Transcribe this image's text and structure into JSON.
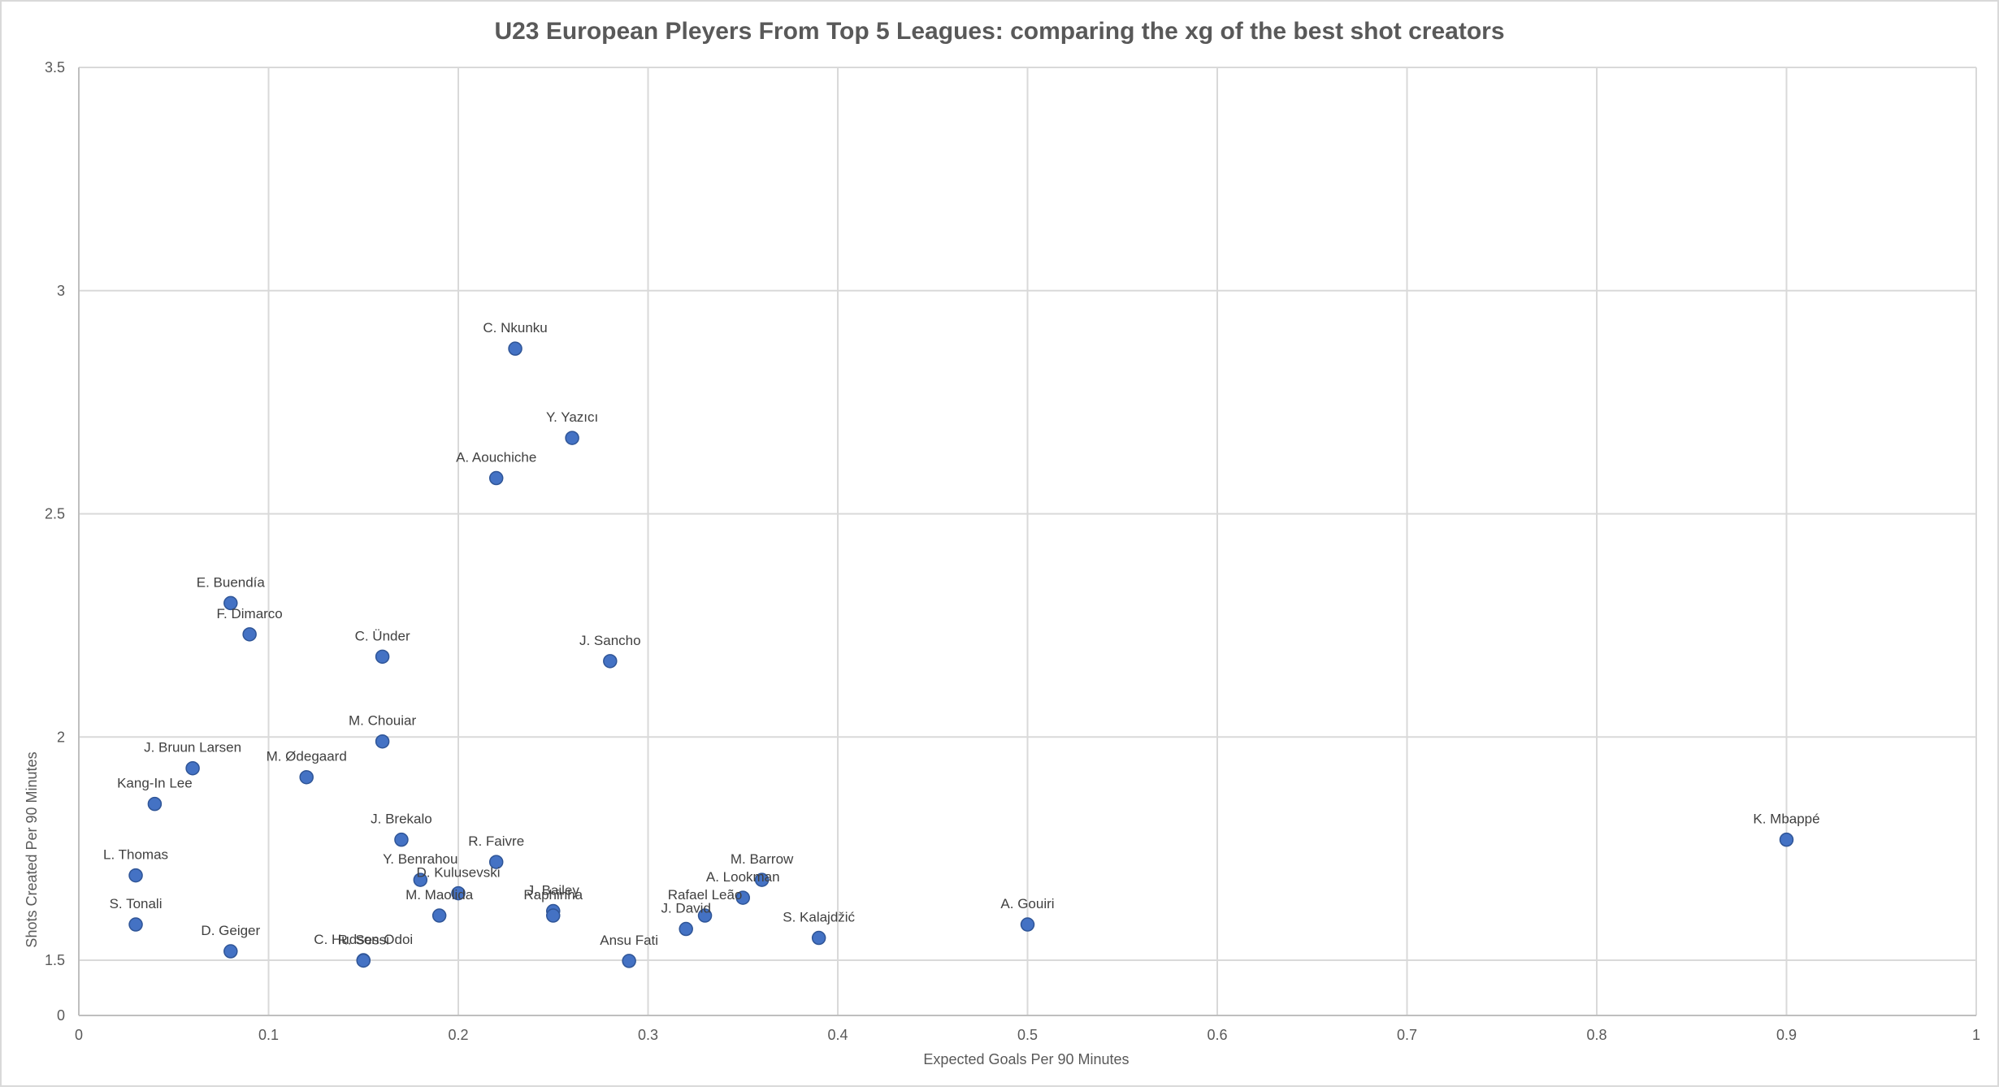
{
  "chart_data": {
    "type": "scatter",
    "title": "U23 European Pleyers From Top 5 Leagues: comparing the xg of the best shot creators",
    "xlabel": "Expected Goals Per 90 Minutes",
    "ylabel": "Shots Created Per 90 Minutes",
    "xlim": [
      0,
      1
    ],
    "ylim": [
      0,
      3.5
    ],
    "y_axis_break": "axis shows 0 at the bottom, then 1.5 to 3.5",
    "xticks": [
      "0",
      "0.1",
      "0.2",
      "0.3",
      "0.4",
      "0.5",
      "0.6",
      "0.7",
      "0.8",
      "0.9",
      "1"
    ],
    "yticks": [
      "0",
      "1.5",
      "2",
      "2.5",
      "3",
      "3.5"
    ],
    "grid": true,
    "legend": "none",
    "marker_color": "#4472c4",
    "points": [
      {
        "label": "C. Nkunku",
        "x": 0.23,
        "y": 2.87
      },
      {
        "label": "Y. Yazıcı",
        "x": 0.26,
        "y": 2.67
      },
      {
        "label": "A. Aouchiche",
        "x": 0.22,
        "y": 2.58
      },
      {
        "label": "E. Buendía",
        "x": 0.08,
        "y": 2.3
      },
      {
        "label": "F. Dimarco",
        "x": 0.09,
        "y": 2.23
      },
      {
        "label": "C. Ünder",
        "x": 0.16,
        "y": 2.18
      },
      {
        "label": "J. Sancho",
        "x": 0.28,
        "y": 2.17
      },
      {
        "label": "M. Chouiar",
        "x": 0.16,
        "y": 1.99
      },
      {
        "label": "J. Bruun Larsen",
        "x": 0.06,
        "y": 1.93
      },
      {
        "label": "M. Ødegaard",
        "x": 0.12,
        "y": 1.91
      },
      {
        "label": "Kang-In Lee",
        "x": 0.04,
        "y": 1.85
      },
      {
        "label": "J. Brekalo",
        "x": 0.17,
        "y": 1.77
      },
      {
        "label": "K. Mbappé",
        "x": 0.9,
        "y": 1.77
      },
      {
        "label": "R. Faivre",
        "x": 0.22,
        "y": 1.72
      },
      {
        "label": "M. Barrow",
        "x": 0.36,
        "y": 1.68
      },
      {
        "label": "L. Thomas",
        "x": 0.03,
        "y": 1.69
      },
      {
        "label": "Y. Benrahou",
        "x": 0.18,
        "y": 1.68
      },
      {
        "label": "D. Kulusevski",
        "x": 0.2,
        "y": 1.65
      },
      {
        "label": "A. Lookman",
        "x": 0.35,
        "y": 1.64
      },
      {
        "label": "J. Bailey",
        "x": 0.25,
        "y": 1.61
      },
      {
        "label": "Raphinha",
        "x": 0.25,
        "y": 1.6
      },
      {
        "label": "Rafael Leão",
        "x": 0.33,
        "y": 1.6
      },
      {
        "label": "M. Maolida",
        "x": 0.19,
        "y": 1.6
      },
      {
        "label": "A. Gouiri",
        "x": 0.5,
        "y": 1.58
      },
      {
        "label": "S. Tonali",
        "x": 0.03,
        "y": 1.58
      },
      {
        "label": "J. David",
        "x": 0.32,
        "y": 1.57
      },
      {
        "label": "S. Kalajdžić",
        "x": 0.39,
        "y": 1.55
      },
      {
        "label": "D. Geiger",
        "x": 0.08,
        "y": 1.52
      },
      {
        "label": "C. Hudson-Odoi",
        "x": 0.15,
        "y": 1.5
      },
      {
        "label": "R. Sessi",
        "x": 0.15,
        "y": 1.49
      },
      {
        "label": "Ansu Fati",
        "x": 0.29,
        "y": 1.48
      }
    ]
  }
}
